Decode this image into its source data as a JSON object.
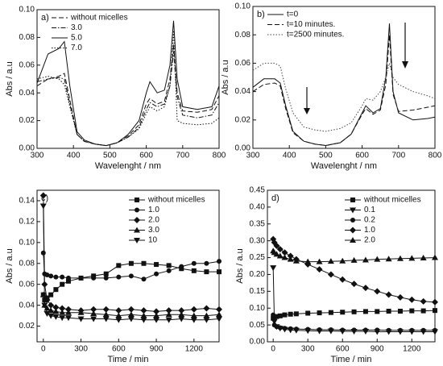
{
  "chart_data": [
    {
      "type": "line",
      "label": "a)",
      "xlabel": "Wavelenght / nm",
      "ylabel": "Abs / a.u",
      "legend": "upper left",
      "x": [
        300,
        330,
        360,
        375,
        390,
        410,
        430,
        460,
        490,
        520,
        550,
        580,
        600,
        610,
        630,
        650,
        665,
        675,
        685,
        700,
        740,
        780,
        800
      ],
      "xlim": [
        300,
        800
      ],
      "xticks": [
        300,
        400,
        500,
        600,
        700,
        800
      ],
      "ylim": [
        0,
        0.1
      ],
      "yticks": [
        {
          "value": 0,
          "label": "0.00"
        },
        {
          "value": 0.02,
          "label": "0.02"
        },
        {
          "value": 0.04,
          "label": "0.04"
        },
        {
          "value": 0.06,
          "label": "0.06"
        },
        {
          "value": 0.08,
          "label": "0.08"
        },
        {
          "value": 0.1,
          "label": "0.10"
        }
      ],
      "series": [
        {
          "name": "without micelles",
          "color": "#111111",
          "dash": "dashed",
          "values": [
            0.045,
            0.05,
            0.052,
            0.054,
            0.035,
            0.01,
            0.005,
            0.003,
            0.002,
            0.004,
            0.009,
            0.017,
            0.032,
            0.036,
            0.032,
            0.034,
            0.05,
            0.075,
            0.04,
            0.027,
            0.026,
            0.028,
            0.038
          ]
        },
        {
          "name": "3.0",
          "color": "#111111",
          "dash": "dashdot",
          "values": [
            0.048,
            0.05,
            0.051,
            0.05,
            0.032,
            0.01,
            0.005,
            0.003,
            0.002,
            0.004,
            0.008,
            0.015,
            0.028,
            0.033,
            0.03,
            0.032,
            0.045,
            0.07,
            0.037,
            0.024,
            0.022,
            0.024,
            0.033
          ]
        },
        {
          "name": "5.0",
          "color": "#111111",
          "dash": "solid",
          "values": [
            0.047,
            0.068,
            0.072,
            0.077,
            0.045,
            0.012,
            0.006,
            0.003,
            0.002,
            0.004,
            0.01,
            0.02,
            0.04,
            0.048,
            0.04,
            0.042,
            0.06,
            0.092,
            0.05,
            0.03,
            0.028,
            0.03,
            0.045
          ]
        },
        {
          "name": "7.0",
          "color": "#111111",
          "dash": "dotted",
          "values": [
            0.05,
            0.052,
            0.05,
            0.046,
            0.03,
            0.01,
            0.005,
            0.003,
            0.002,
            0.004,
            0.008,
            0.014,
            0.025,
            0.03,
            0.027,
            0.03,
            0.045,
            0.085,
            0.02,
            0.018,
            0.017,
            0.018,
            0.022
          ]
        }
      ]
    },
    {
      "type": "line",
      "label": "b)",
      "xlabel": "Wavelenght / nm",
      "ylabel": "Abs / a.u",
      "legend": "upper left",
      "x": [
        300,
        330,
        360,
        375,
        390,
        410,
        440,
        470,
        500,
        540,
        570,
        600,
        610,
        630,
        650,
        665,
        675,
        685,
        700,
        740,
        780,
        800
      ],
      "xlim": [
        300,
        800
      ],
      "xticks": [
        300,
        400,
        500,
        600,
        700,
        800
      ],
      "ylim": [
        0,
        0.1
      ],
      "yticks": [
        {
          "value": 0,
          "label": "0.00"
        },
        {
          "value": 0.02,
          "label": "0.02"
        },
        {
          "value": 0.04,
          "label": "0.04"
        },
        {
          "value": 0.06,
          "label": "0.06"
        },
        {
          "value": 0.08,
          "label": "0.08"
        },
        {
          "value": 0.1,
          "label": "0.10"
        }
      ],
      "series": [
        {
          "name": "t=0",
          "color": "#111111",
          "dash": "solid",
          "values": [
            0.043,
            0.049,
            0.049,
            0.046,
            0.03,
            0.012,
            0.005,
            0.003,
            0.002,
            0.004,
            0.01,
            0.025,
            0.03,
            0.025,
            0.028,
            0.05,
            0.088,
            0.04,
            0.025,
            0.02,
            0.021,
            0.022
          ]
        },
        {
          "name": "t=10 minutes.",
          "color": "#111111",
          "dash": "dashed",
          "values": [
            0.04,
            0.045,
            0.046,
            0.044,
            0.028,
            0.011,
            0.005,
            0.003,
            0.002,
            0.004,
            0.01,
            0.024,
            0.028,
            0.024,
            0.027,
            0.045,
            0.08,
            0.038,
            0.026,
            0.027,
            0.029,
            0.03
          ]
        },
        {
          "name": "t=2500 minutes.",
          "color": "#444444",
          "dash": "dotted",
          "values": [
            0.055,
            0.06,
            0.06,
            0.058,
            0.042,
            0.025,
            0.015,
            0.013,
            0.012,
            0.014,
            0.018,
            0.03,
            0.035,
            0.034,
            0.04,
            0.05,
            0.06,
            0.05,
            0.045,
            0.04,
            0.037,
            0.035
          ]
        }
      ]
    },
    {
      "type": "line",
      "label": "c)",
      "xlabel": "Time / min",
      "ylabel": "Abs / a.u",
      "legend": "upper right",
      "x": [
        0,
        10,
        30,
        60,
        100,
        150,
        200,
        300,
        400,
        500,
        600,
        700,
        800,
        900,
        1000,
        1100,
        1200,
        1300,
        1400
      ],
      "xlim": [
        -50,
        1400
      ],
      "xticks": [
        0,
        300,
        600,
        900,
        1200
      ],
      "ylim": [
        0.005,
        0.15
      ],
      "yticks": [
        {
          "value": 0.02,
          "label": "0.02"
        },
        {
          "value": 0.04,
          "label": "0.04"
        },
        {
          "value": 0.06,
          "label": "0.06"
        },
        {
          "value": 0.08,
          "label": "0.08"
        },
        {
          "value": 0.1,
          "label": "0.10"
        },
        {
          "value": 0.12,
          "label": "0.12"
        },
        {
          "value": 0.14,
          "label": "0.14"
        }
      ],
      "series": [
        {
          "name": "without micelles",
          "color": "#111111",
          "dash": "solid",
          "marker": "square",
          "values": [
            0.05,
            0.045,
            0.047,
            0.05,
            0.055,
            0.06,
            0.063,
            0.066,
            0.068,
            0.07,
            0.078,
            0.08,
            0.08,
            0.079,
            0.078,
            0.075,
            0.073,
            0.072,
            0.072
          ]
        },
        {
          "name": "1.0",
          "color": "#111111",
          "dash": "solid",
          "marker": "circle",
          "values": [
            0.09,
            0.07,
            0.069,
            0.068,
            0.067,
            0.067,
            0.066,
            0.066,
            0.066,
            0.066,
            0.067,
            0.068,
            0.065,
            0.07,
            0.073,
            0.077,
            0.08,
            0.08,
            0.082
          ]
        },
        {
          "name": "2.0",
          "color": "#111111",
          "dash": "solid",
          "marker": "diamond",
          "values": [
            0.145,
            0.06,
            0.045,
            0.04,
            0.038,
            0.037,
            0.036,
            0.035,
            0.036,
            0.036,
            0.035,
            0.036,
            0.035,
            0.034,
            0.035,
            0.035,
            0.036,
            0.037,
            0.036
          ]
        },
        {
          "name": "3.0",
          "color": "#111111",
          "dash": "solid",
          "marker": "triangle-up",
          "values": [
            0.05,
            0.04,
            0.037,
            0.035,
            0.034,
            0.033,
            0.033,
            0.033,
            0.032,
            0.031,
            0.03,
            0.031,
            0.03,
            0.03,
            0.031,
            0.031,
            0.03,
            0.03,
            0.031
          ]
        },
        {
          "name": "10",
          "color": "#111111",
          "dash": "solid",
          "marker": "triangle-down",
          "values": [
            0.135,
            0.04,
            0.032,
            0.03,
            0.029,
            0.028,
            0.028,
            0.027,
            0.027,
            0.027,
            0.026,
            0.027,
            0.026,
            0.026,
            0.026,
            0.027,
            0.026,
            0.026,
            0.027
          ]
        }
      ]
    },
    {
      "type": "line",
      "label": "d)",
      "xlabel": "Time / min",
      "ylabel": "Abs / a.u",
      "legend": "upper right",
      "x": [
        0,
        10,
        30,
        60,
        100,
        150,
        200,
        300,
        400,
        500,
        600,
        700,
        800,
        900,
        1000,
        1100,
        1200,
        1300,
        1400
      ],
      "xlim": [
        -50,
        1400
      ],
      "xticks": [
        0,
        300,
        600,
        900,
        1200
      ],
      "ylim": [
        0,
        0.45
      ],
      "yticks": [
        {
          "value": 0,
          "label": "0.00"
        },
        {
          "value": 0.05,
          "label": "0.05"
        },
        {
          "value": 0.1,
          "label": "0.10"
        },
        {
          "value": 0.15,
          "label": "0.15"
        },
        {
          "value": 0.2,
          "label": "0.20"
        },
        {
          "value": 0.25,
          "label": "0.25"
        },
        {
          "value": 0.3,
          "label": "0.30"
        },
        {
          "value": 0.35,
          "label": "0.35"
        },
        {
          "value": 0.4,
          "label": "0.40"
        },
        {
          "value": 0.45,
          "label": "0.45"
        }
      ],
      "series": [
        {
          "name": "without micelles",
          "color": "#111111",
          "dash": "solid",
          "marker": "square",
          "values": [
            0.07,
            0.072,
            0.075,
            0.077,
            0.08,
            0.082,
            0.083,
            0.085,
            0.086,
            0.087,
            0.088,
            0.089,
            0.09,
            0.09,
            0.091,
            0.091,
            0.092,
            0.092,
            0.093
          ]
        },
        {
          "name": "0.1",
          "color": "#111111",
          "dash": "solid",
          "marker": "triangle-down",
          "values": [
            0.22,
            0.06,
            0.045,
            0.04,
            0.037,
            0.035,
            0.034,
            0.033,
            0.032,
            0.032,
            0.031,
            0.031,
            0.031,
            0.03,
            0.03,
            0.03,
            0.03,
            0.03,
            0.03
          ]
        },
        {
          "name": "0.2",
          "color": "#111111",
          "dash": "solid",
          "marker": "circle",
          "values": [
            0.08,
            0.05,
            0.045,
            0.042,
            0.04,
            0.039,
            0.038,
            0.037,
            0.036,
            0.036,
            0.035,
            0.035,
            0.035,
            0.035,
            0.034,
            0.034,
            0.034,
            0.034,
            0.034
          ]
        },
        {
          "name": "1.0",
          "color": "#111111",
          "dash": "solid",
          "marker": "diamond",
          "values": [
            0.305,
            0.295,
            0.285,
            0.275,
            0.265,
            0.255,
            0.245,
            0.23,
            0.215,
            0.2,
            0.185,
            0.172,
            0.16,
            0.15,
            0.14,
            0.132,
            0.125,
            0.12,
            0.118
          ]
        },
        {
          "name": "2.0",
          "color": "#111111",
          "dash": "solid",
          "marker": "triangle-up",
          "values": [
            0.27,
            0.265,
            0.26,
            0.255,
            0.25,
            0.245,
            0.24,
            0.238,
            0.238,
            0.239,
            0.24,
            0.242,
            0.243,
            0.245,
            0.246,
            0.247,
            0.248,
            0.249,
            0.25
          ]
        }
      ]
    }
  ]
}
